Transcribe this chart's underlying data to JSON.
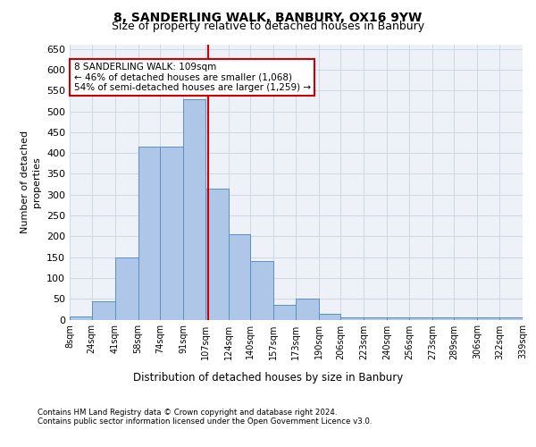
{
  "title1": "8, SANDERLING WALK, BANBURY, OX16 9YW",
  "title2": "Size of property relative to detached houses in Banbury",
  "xlabel": "Distribution of detached houses by size in Banbury",
  "ylabel": "Number of detached\nproperties",
  "footnote1": "Contains HM Land Registry data © Crown copyright and database right 2024.",
  "footnote2": "Contains public sector information licensed under the Open Government Licence v3.0.",
  "annotation_line1": "8 SANDERLING WALK: 109sqm",
  "annotation_line2": "← 46% of detached houses are smaller (1,068)",
  "annotation_line3": "54% of semi-detached houses are larger (1,259) →",
  "property_size": 109,
  "bin_edges": [
    8,
    24,
    41,
    58,
    74,
    91,
    107,
    124,
    140,
    157,
    173,
    190,
    206,
    223,
    240,
    256,
    273,
    289,
    306,
    322,
    339
  ],
  "bar_heights": [
    7,
    44,
    150,
    416,
    416,
    530,
    315,
    205,
    140,
    35,
    50,
    15,
    5,
    5,
    5,
    5,
    5,
    5,
    5,
    5
  ],
  "bar_color": "#aec6e8",
  "bar_edge_color": "#5a8fc2",
  "vline_color": "#cc0000",
  "annotation_box_color": "#cc0000",
  "grid_color": "#d0d8e8",
  "background_color": "#eef2f8",
  "ylim": [
    0,
    660
  ],
  "yticks": [
    0,
    50,
    100,
    150,
    200,
    250,
    300,
    350,
    400,
    450,
    500,
    550,
    600,
    650
  ]
}
